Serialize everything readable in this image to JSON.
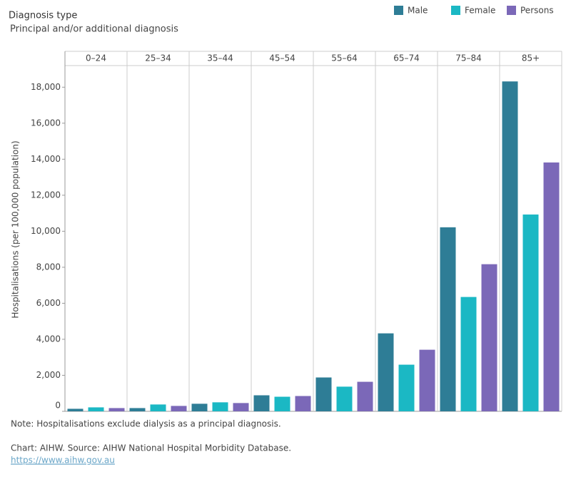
{
  "chart_data": {
    "type": "bar",
    "title": "Diagnosis type",
    "subtitle": "Principal and/or additional diagnosis",
    "y_label": "Hospitalisations (per 100,000 population)",
    "categories": [
      "0–24",
      "25–34",
      "35–44",
      "45–54",
      "55–64",
      "65–74",
      "75–84",
      "85+"
    ],
    "series": [
      {
        "name": "Male",
        "color": "#2e7d96",
        "values": [
          140,
          180,
          420,
          890,
          1880,
          4330,
          10220,
          18320
        ]
      },
      {
        "name": "Female",
        "color": "#1bb8c4",
        "values": [
          220,
          380,
          500,
          810,
          1370,
          2590,
          6350,
          10930
        ]
      },
      {
        "name": "Persons",
        "color": "#7b68b8",
        "values": [
          180,
          300,
          460,
          850,
          1640,
          3420,
          8170,
          13820
        ]
      }
    ],
    "ylim": [
      0,
      19200
    ],
    "yticks": [
      0,
      {
        "value": 2000,
        "label": "2,000"
      },
      {
        "value": 4000,
        "label": "4,000"
      },
      {
        "value": 6000,
        "label": "6,000"
      },
      {
        "value": 8000,
        "label": "8,000"
      },
      {
        "value": 10000,
        "label": "10,000"
      },
      {
        "value": 12000,
        "label": "12,000"
      },
      {
        "value": 14000,
        "label": "14,000"
      },
      {
        "value": 16000,
        "label": "16,000"
      },
      {
        "value": 18000,
        "label": "18,000"
      }
    ],
    "grid": false,
    "legend_position": "top-right",
    "note": "Note: Hospitalisations exclude dialysis as a principal diagnosis.",
    "source": "Chart: AIHW. Source: AIHW National Hospital Morbidity Database.",
    "link": "https://www.aihw.gov.au"
  }
}
